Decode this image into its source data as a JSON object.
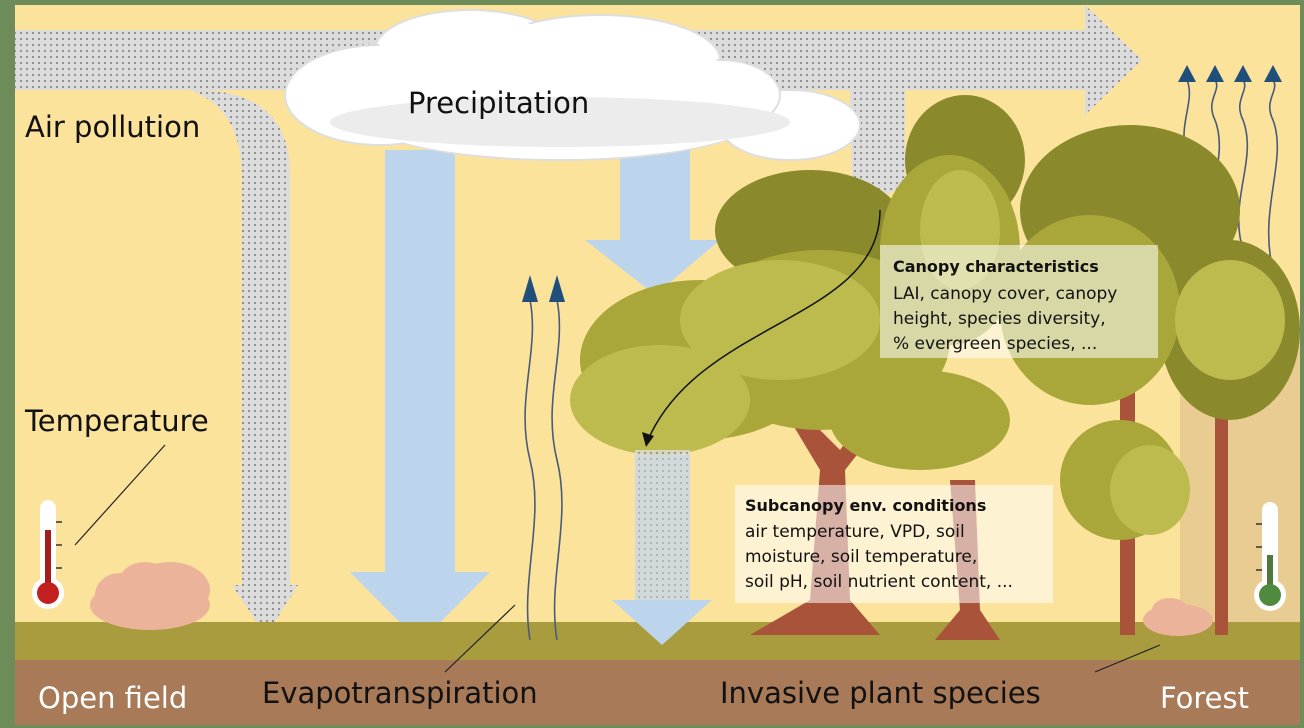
{
  "labels": {
    "air_pollution": "Air pollution",
    "precipitation": "Precipitation",
    "temperature": "Temperature",
    "evapotranspiration": "Evapotranspiration",
    "open_field": "Open field",
    "invasive_plant_species": "Invasive plant species",
    "forest": "Forest"
  },
  "boxes": {
    "canopy": {
      "title": "Canopy characteristics",
      "lines": [
        "LAI, canopy cover, canopy",
        "height, species diversity,",
        "% evergreen species, ..."
      ]
    },
    "subcanopy": {
      "title": "Subcanopy env. conditions",
      "lines": [
        "air temperature, VPD, soil",
        "moisture, soil temperature,",
        "soil pH, soil nutrient content, ..."
      ]
    }
  }
}
